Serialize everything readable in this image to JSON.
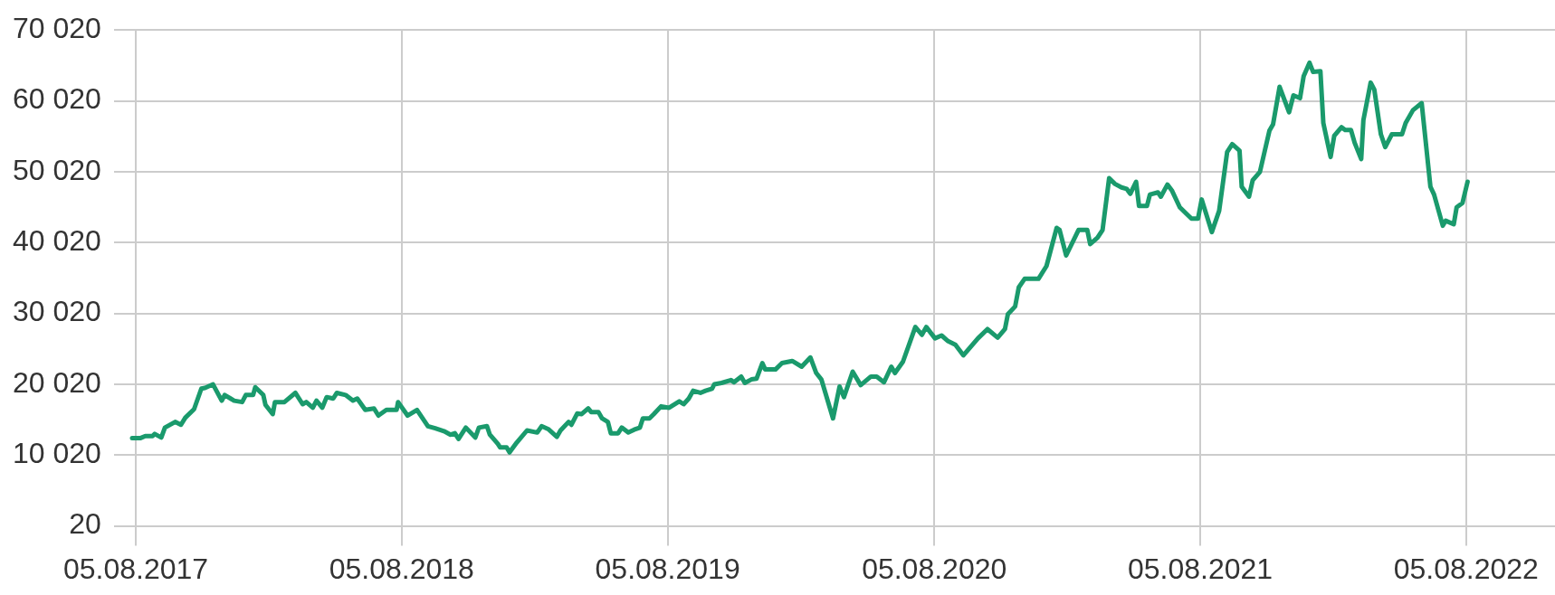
{
  "chart_data": {
    "type": "line",
    "grid": true,
    "marker": "none",
    "line_style": "solid",
    "xlim": [
      "2017-07-06",
      "2022-12-05"
    ],
    "ylim": [
      20,
      70020
    ],
    "xticks": [
      {
        "value": "2017-08-05",
        "label": "05.08.2017"
      },
      {
        "value": "2018-08-05",
        "label": "05.08.2018"
      },
      {
        "value": "2019-08-05",
        "label": "05.08.2019"
      },
      {
        "value": "2020-08-05",
        "label": "05.08.2020"
      },
      {
        "value": "2021-08-05",
        "label": "05.08.2021"
      },
      {
        "value": "2022-08-05",
        "label": "05.08.2022"
      }
    ],
    "yticks": [
      20,
      {
        "value": 10020,
        "label": "10 020"
      },
      {
        "value": 20020,
        "label": "20 020"
      },
      {
        "value": 30020,
        "label": "30 020"
      },
      {
        "value": 40020,
        "label": "40 020"
      },
      {
        "value": 50020,
        "label": "50 020"
      },
      {
        "value": 60020,
        "label": "60 020"
      },
      {
        "value": 70020,
        "label": "70 020"
      }
    ],
    "series": [
      {
        "color": "#1a9a6c",
        "x": [
          "2017-07-31",
          "2017-08-11",
          "2017-08-18",
          "2017-08-28",
          "2017-08-31",
          "2017-09-09",
          "2017-09-14",
          "2017-09-28",
          "2017-10-06",
          "2017-10-12",
          "2017-10-24",
          "2017-11-03",
          "2017-11-08",
          "2017-11-19",
          "2017-12-01",
          "2017-12-05",
          "2017-12-18",
          "2017-12-29",
          "2018-01-03",
          "2018-01-13",
          "2018-01-16",
          "2018-01-27",
          "2018-01-30",
          "2018-02-09",
          "2018-02-12",
          "2018-02-25",
          "2018-03-12",
          "2018-03-22",
          "2018-03-27",
          "2018-04-05",
          "2018-04-10",
          "2018-04-18",
          "2018-04-24",
          "2018-05-03",
          "2018-05-08",
          "2018-05-20",
          "2018-05-30",
          "2018-06-05",
          "2018-06-16",
          "2018-06-28",
          "2018-07-04",
          "2018-07-15",
          "2018-07-29",
          "2018-07-31",
          "2018-08-13",
          "2018-08-26",
          "2018-09-10",
          "2018-09-20",
          "2018-10-02",
          "2018-10-11",
          "2018-10-17",
          "2018-10-22",
          "2018-11-01",
          "2018-11-14",
          "2018-11-19",
          "2018-11-30",
          "2018-12-04",
          "2018-12-15",
          "2018-12-18",
          "2018-12-27",
          "2018-12-31",
          "2019-01-10",
          "2019-01-24",
          "2019-02-07",
          "2019-02-13",
          "2019-02-22",
          "2019-03-06",
          "2019-03-11",
          "2019-03-22",
          "2019-03-26",
          "2019-04-03",
          "2019-04-09",
          "2019-04-18",
          "2019-04-22",
          "2019-05-02",
          "2019-05-07",
          "2019-05-15",
          "2019-05-19",
          "2019-05-29",
          "2019-06-03",
          "2019-06-12",
          "2019-06-20",
          "2019-06-28",
          "2019-07-02",
          "2019-07-11",
          "2019-07-17",
          "2019-07-27",
          "2019-08-07",
          "2019-08-21",
          "2019-08-27",
          "2019-09-03",
          "2019-09-09",
          "2019-09-19",
          "2019-09-26",
          "2019-10-05",
          "2019-10-08",
          "2019-10-18",
          "2019-10-31",
          "2019-11-04",
          "2019-11-14",
          "2019-11-19",
          "2019-11-28",
          "2019-12-05",
          "2019-12-13",
          "2019-12-17",
          "2019-12-31",
          "2020-01-09",
          "2020-01-23",
          "2020-02-05",
          "2020-02-17",
          "2020-02-25",
          "2020-03-03",
          "2020-03-19",
          "2020-03-28",
          "2020-04-03",
          "2020-04-15",
          "2020-04-26",
          "2020-05-10",
          "2020-05-18",
          "2020-05-28",
          "2020-06-07",
          "2020-06-12",
          "2020-06-23",
          "2020-07-10",
          "2020-07-19",
          "2020-07-25",
          "2020-08-06",
          "2020-08-15",
          "2020-08-24",
          "2020-09-03",
          "2020-09-14",
          "2020-10-04",
          "2020-10-17",
          "2020-10-31",
          "2020-11-10",
          "2020-11-14",
          "2020-11-24",
          "2020-11-29",
          "2020-12-07",
          "2020-12-26",
          "2021-01-06",
          "2021-01-20",
          "2021-01-24",
          "2021-02-02",
          "2021-02-19",
          "2021-03-03",
          "2021-03-07",
          "2021-03-17",
          "2021-03-24",
          "2021-04-02",
          "2021-04-10",
          "2021-04-19",
          "2021-04-26",
          "2021-05-01",
          "2021-05-09",
          "2021-05-13",
          "2021-05-24",
          "2021-05-28",
          "2021-06-08",
          "2021-06-12",
          "2021-06-21",
          "2021-06-27",
          "2021-07-08",
          "2021-07-15",
          "2021-07-24",
          "2021-08-02",
          "2021-08-07",
          "2021-08-21",
          "2021-08-31",
          "2021-09-11",
          "2021-09-18",
          "2021-09-28",
          "2021-10-01",
          "2021-10-11",
          "2021-10-16",
          "2021-10-26",
          "2021-11-08",
          "2021-11-13",
          "2021-11-22",
          "2021-12-05",
          "2021-12-11",
          "2021-12-20",
          "2021-12-25",
          "2022-01-02",
          "2022-01-07",
          "2022-01-17",
          "2022-01-21",
          "2022-01-31",
          "2022-02-05",
          "2022-02-15",
          "2022-02-20",
          "2022-02-28",
          "2022-03-05",
          "2022-03-14",
          "2022-03-17",
          "2022-03-27",
          "2022-04-01",
          "2022-04-10",
          "2022-04-16",
          "2022-04-25",
          "2022-05-09",
          "2022-05-14",
          "2022-05-24",
          "2022-06-05",
          "2022-06-17",
          "2022-06-22",
          "2022-07-04",
          "2022-07-08",
          "2022-07-19",
          "2022-07-23",
          "2022-07-31",
          "2022-08-07"
        ],
        "values": [
          12400,
          12400,
          12700,
          12700,
          13000,
          12500,
          13900,
          14700,
          14300,
          15300,
          16500,
          19400,
          19500,
          20000,
          17700,
          18500,
          17700,
          17500,
          18500,
          18500,
          19600,
          18500,
          17100,
          15800,
          17500,
          17500,
          18800,
          17200,
          17500,
          16700,
          17700,
          16700,
          18200,
          18000,
          18800,
          18500,
          17700,
          18000,
          16400,
          16600,
          15600,
          16400,
          16400,
          17500,
          15600,
          16400,
          14100,
          13800,
          13400,
          12900,
          13100,
          12300,
          13900,
          12500,
          13900,
          14100,
          12900,
          11600,
          11100,
          11100,
          10400,
          11800,
          13500,
          13200,
          14100,
          13700,
          12600,
          13500,
          14700,
          14300,
          15900,
          15800,
          16600,
          16100,
          16100,
          15200,
          14700,
          13100,
          13100,
          13900,
          13200,
          13600,
          13900,
          15200,
          15200,
          15800,
          16900,
          16700,
          17600,
          17200,
          18000,
          19100,
          18800,
          19100,
          19400,
          20000,
          20200,
          20600,
          20300,
          21100,
          20200,
          20700,
          20800,
          23000,
          22100,
          22100,
          23000,
          23300,
          22500,
          23800,
          21600,
          20700,
          15200,
          19700,
          18200,
          21800,
          19900,
          21100,
          21100,
          20300,
          22500,
          21600,
          23200,
          28100,
          27000,
          28100,
          26500,
          26900,
          26100,
          25600,
          24100,
          26500,
          27800,
          26600,
          27800,
          29900,
          31000,
          33700,
          34900,
          34900,
          36700,
          42100,
          41800,
          38200,
          41800,
          41800,
          39800,
          40700,
          41800,
          49100,
          48300,
          47800,
          47600,
          46900,
          48600,
          45200,
          45200,
          46800,
          47100,
          46500,
          48200,
          47400,
          45000,
          44300,
          43400,
          43400,
          46100,
          41500,
          44500,
          52800,
          53900,
          53000,
          47900,
          46500,
          48800,
          50000,
          55800,
          56700,
          62000,
          58400,
          60800,
          60400,
          63500,
          65400,
          64100,
          64200,
          56900,
          52100,
          55100,
          56300,
          55900,
          55900,
          54100,
          51800,
          57300,
          62600,
          61600,
          55300,
          53500,
          55300,
          55300,
          56900,
          58700,
          59700,
          47900,
          46800,
          42400,
          43100,
          42600,
          45000,
          45600,
          48600
        ]
      }
    ]
  }
}
